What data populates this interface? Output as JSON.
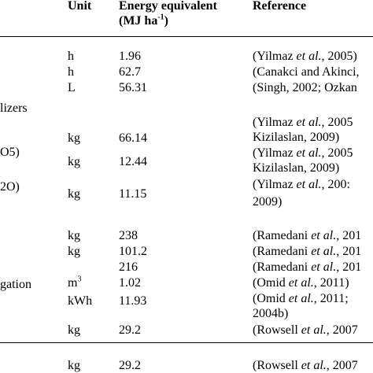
{
  "header": {
    "unit": "Unit",
    "energy_line1": "Energy equivalent",
    "energy_line2": "(MJ ha",
    "energy_sup": "-1",
    "energy_close": ")",
    "reference": "Reference"
  },
  "left_fragments": {
    "fertilizers": "lizers",
    "p2o5": "O5)",
    "k2o": "2O)",
    "irrigation": "gation"
  },
  "rows": [
    {
      "unit": "h",
      "value": "1.96",
      "ref1": "(Yilmaz et al., 2005)"
    },
    {
      "unit": "h",
      "value": "62.7",
      "ref1": "(Canakci and Akinci,"
    },
    {
      "unit": "L",
      "value": "56.31",
      "ref1": "(Singh, 2002; Ozkan"
    },
    {
      "unit": "kg",
      "value": "66.14",
      "ref1": "(Yilmaz et al., 2005",
      "ref2": "Kizilaslan, 2009)"
    },
    {
      "unit": "kg",
      "value": "12.44",
      "ref1": "(Yilmaz et al., 2005",
      "ref2": "Kizilaslan, 2009)"
    },
    {
      "unit": "kg",
      "value": "11.15",
      "ref1": "(Yilmaz et al., 200:",
      "ref2": "2009)"
    },
    {
      "unit": "kg",
      "value": "238",
      "ref1": "(Ramedani et al., 201"
    },
    {
      "unit": "kg",
      "value": "101.2",
      "ref1": "(Ramedani et al., 201"
    },
    {
      "unit": "",
      "value": "216",
      "ref1": "(Ramedani et al., 201"
    },
    {
      "unit": "m",
      "unit_sup": "3",
      "value": "1.02",
      "ref1": "(Omid et al., 2011)"
    },
    {
      "unit": "kWh",
      "value": "11.93",
      "ref1": "(Omid et al., 2011;",
      "ref2": "2004b)"
    },
    {
      "unit": "kg",
      "value": "29.2",
      "ref1": "(Rowsell et al., 2007"
    },
    {
      "unit": "kg",
      "value": "29.2",
      "ref1": "(Rowsell et al., 2007"
    }
  ]
}
